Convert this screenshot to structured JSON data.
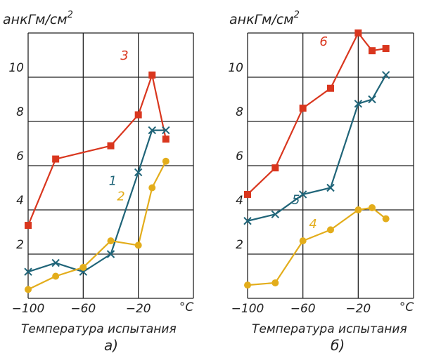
{
  "chart_data": [
    {
      "type": "line",
      "panel_label": "a)",
      "ylabel": "aнкГм/см",
      "ylabel_exp": "2",
      "xlabel": "Температура испытания",
      "x_unit": "°С",
      "x_ticks": [
        "−100",
        "−60",
        "−20"
      ],
      "y_ticks": [
        "2",
        "4",
        "6",
        "8",
        "10"
      ],
      "xlim": [
        -100,
        20
      ],
      "ylim": [
        0,
        12
      ],
      "grid": true,
      "series": [
        {
          "name": "3",
          "color": "#d9361e",
          "marker": "square",
          "x": [
            -100,
            -80,
            -40,
            -20,
            -10,
            0
          ],
          "y": [
            3.3,
            6.3,
            6.9,
            8.3,
            10.1,
            7.2
          ]
        },
        {
          "name": "1",
          "color": "#1f6478",
          "marker": "cross",
          "x": [
            -100,
            -80,
            -60,
            -40,
            -20,
            -10,
            0
          ],
          "y": [
            1.2,
            1.6,
            1.2,
            2.0,
            5.7,
            7.6,
            7.6
          ]
        },
        {
          "name": "2",
          "color": "#e3ad1b",
          "marker": "circle",
          "x": [
            -100,
            -80,
            -60,
            -40,
            -20,
            -10,
            0
          ],
          "y": [
            0.4,
            1.0,
            1.4,
            2.6,
            2.4,
            5.0,
            6.2
          ]
        }
      ]
    },
    {
      "type": "line",
      "panel_label": "б)",
      "ylabel": "aнкГм/см",
      "ylabel_exp": "2",
      "xlabel": "Температура испытания",
      "x_unit": "°С",
      "x_ticks": [
        "−100",
        "−60",
        "−20"
      ],
      "y_ticks": [
        "2",
        "4",
        "6",
        "8",
        "10"
      ],
      "xlim": [
        -100,
        20
      ],
      "ylim": [
        0,
        12
      ],
      "grid": true,
      "series": [
        {
          "name": "6",
          "color": "#d9361e",
          "marker": "square",
          "x": [
            -100,
            -80,
            -60,
            -40,
            -20,
            -10,
            0
          ],
          "y": [
            4.7,
            5.9,
            8.6,
            9.5,
            12.0,
            11.2,
            11.3
          ]
        },
        {
          "name": "5",
          "color": "#1f6478",
          "marker": "cross",
          "x": [
            -100,
            -80,
            -60,
            -40,
            -20,
            -10,
            0
          ],
          "y": [
            3.5,
            3.8,
            4.7,
            5.0,
            8.8,
            9.0,
            10.1
          ]
        },
        {
          "name": "4",
          "color": "#e3ad1b",
          "marker": "circle",
          "x": [
            -100,
            -80,
            -60,
            -40,
            -20,
            -10,
            0
          ],
          "y": [
            0.6,
            0.7,
            2.6,
            3.1,
            4.0,
            4.1,
            3.6
          ]
        }
      ]
    }
  ]
}
